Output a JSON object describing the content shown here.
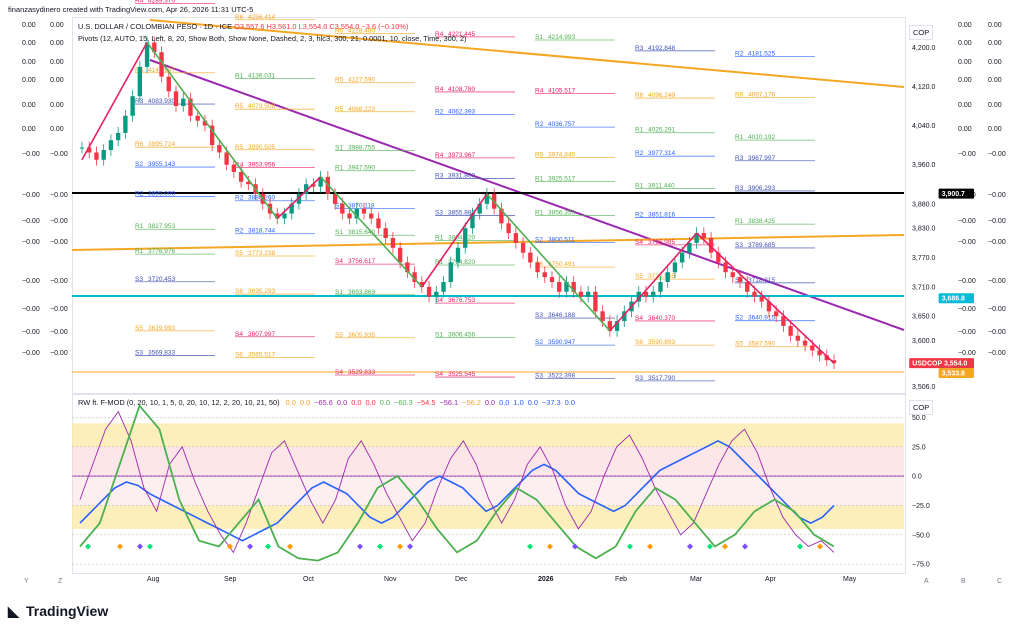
{
  "header": {
    "created_by": "finanzasydinero created with TradingView.com, Apr 26, 2026 11:31 UTC-5"
  },
  "symbol_legend": {
    "symbol": "U.S. DOLLAR / COLOMBIAN PESO · 1D · ICE",
    "ohlc": "O3,557.6  H3,561.0  L3,554.0  C3,554.0  −3.6 (−0.10%)"
  },
  "pivots_legend": "Pivots (12, AUTO, 15, Left, 8, 20, Show Both, Show None, Dashed, 2, 3, hlc3, 300, 21, 0.0001, 10, close, Time, 300, 2)",
  "oscillator_legend": {
    "name": "RW ft. F-MOD (0, 20, 10, 1, 5, 0, 20, 10, 12, 2, 20, 10, 21, 50)",
    "values": [
      {
        "v": "0.0",
        "c": "#f5a623"
      },
      {
        "v": "0.0",
        "c": "#f5a623"
      },
      {
        "v": "−65.6",
        "c": "#9c27b0"
      },
      {
        "v": "0.0",
        "c": "#9c27b0"
      },
      {
        "v": "0.0",
        "c": "#f23645"
      },
      {
        "v": "0.0",
        "c": "#f23645"
      },
      {
        "v": "0.0",
        "c": "#4caf50"
      },
      {
        "v": "−60.3",
        "c": "#4caf50"
      },
      {
        "v": "−54.5",
        "c": "#f23645"
      },
      {
        "v": "−56.1",
        "c": "#9c27b0"
      },
      {
        "v": "−56.2",
        "c": "#f5a623"
      },
      {
        "v": "0.0",
        "c": "#9c27b0"
      },
      {
        "v": "0.0",
        "c": "#2962ff"
      },
      {
        "v": "1.0",
        "c": "#2962ff"
      },
      {
        "v": "0.0",
        "c": "#2962ff"
      },
      {
        "v": "−37.3",
        "c": "#2962ff"
      },
      {
        "v": "0.0",
        "c": "#2962ff"
      }
    ]
  },
  "brand": "TradingView",
  "currency_label": "COP",
  "chart_data": [
    {
      "type": "candlestick",
      "title": "U.S. DOLLAR / COLOMBIAN PESO",
      "interval": "1D",
      "exchange": "ICE",
      "x_ticks": [
        "Aug",
        "Sep",
        "Oct",
        "Nov",
        "Dec",
        "2026",
        "Feb",
        "Mar",
        "Apr",
        "May"
      ],
      "y_ticks": [
        4200.0,
        4120.0,
        4040.0,
        3960.0,
        3880.0,
        3830.0,
        3770.0,
        3710.0,
        3650.0,
        3600.0,
        3506.0
      ],
      "ylim": [
        3495,
        4260
      ],
      "last_price": 3554.0,
      "price_labels": [
        {
          "label": "3,900.7",
          "color": "#000000"
        },
        {
          "label": "3,686.8",
          "color": "#00bcd4"
        },
        {
          "label": "USDCOP 3,554.0",
          "color": "#f23645"
        },
        {
          "label": "3,533.8",
          "color": "#f5a623"
        }
      ],
      "closes": [
        3995,
        3985,
        3970,
        3990,
        4010,
        4025,
        4060,
        4100,
        4160,
        4210,
        4190,
        4140,
        4110,
        4080,
        4095,
        4060,
        4050,
        4040,
        4000,
        3985,
        3960,
        3945,
        3925,
        3920,
        3900,
        3880,
        3860,
        3850,
        3860,
        3880,
        3900,
        3920,
        3915,
        3935,
        3900,
        3880,
        3860,
        3850,
        3870,
        3860,
        3850,
        3830,
        3810,
        3790,
        3760,
        3740,
        3720,
        3710,
        3690,
        3700,
        3720,
        3760,
        3790,
        3830,
        3860,
        3880,
        3900,
        3870,
        3840,
        3820,
        3800,
        3780,
        3760,
        3740,
        3730,
        3720,
        3700,
        3720,
        3700,
        3690,
        3700,
        3660,
        3640,
        3620,
        3640,
        3660,
        3680,
        3700,
        3690,
        3700,
        3720,
        3740,
        3760,
        3780,
        3800,
        3820,
        3810,
        3780,
        3760,
        3740,
        3730,
        3720,
        3700,
        3690,
        3680,
        3660,
        3650,
        3630,
        3610,
        3600,
        3590,
        3580,
        3570,
        3560,
        3554
      ],
      "pivot_levels": [
        {
          "label": "R4",
          "value": "4289.370"
        },
        {
          "label": "R6",
          "value": "4256.414"
        },
        {
          "label": "R5",
          "value": "4228.480"
        },
        {
          "label": "R4",
          "value": "4221.445"
        },
        {
          "label": "S1",
          "value": "4214.993"
        },
        {
          "label": "R3",
          "value": "4192.848"
        },
        {
          "label": "R2",
          "value": "4181.525"
        },
        {
          "label": "R6",
          "value": "4147.997"
        },
        {
          "label": "R1",
          "value": "4136.031"
        },
        {
          "label": "R5",
          "value": "4127.590"
        },
        {
          "label": "R4",
          "value": "4108.780"
        },
        {
          "label": "R4",
          "value": "4105.517"
        },
        {
          "label": "R6",
          "value": "4096.249"
        },
        {
          "label": "R6",
          "value": "4097.176"
        },
        {
          "label": "R3",
          "value": "4083.930"
        },
        {
          "label": "R5",
          "value": "4073.508"
        },
        {
          "label": "R5",
          "value": "4068.223"
        },
        {
          "label": "R2",
          "value": "4062.393"
        },
        {
          "label": "R2",
          "value": "4036.757"
        },
        {
          "label": "R1",
          "value": "4025.291"
        },
        {
          "label": "R1",
          "value": "4010.192"
        },
        {
          "label": "R6",
          "value": "3995.724"
        },
        {
          "label": "R5",
          "value": "3990.505"
        },
        {
          "label": "S1",
          "value": "3988.755"
        },
        {
          "label": "R4",
          "value": "3973.967"
        },
        {
          "label": "R5",
          "value": "3974.840"
        },
        {
          "label": "R2",
          "value": "3977.314"
        },
        {
          "label": "R3",
          "value": "3967.997"
        },
        {
          "label": "S2",
          "value": "3955.143"
        },
        {
          "label": "R4",
          "value": "3953.956"
        },
        {
          "label": "R1",
          "value": "3947.590"
        },
        {
          "label": "R3",
          "value": "3931.800"
        },
        {
          "label": "R1",
          "value": "3925.517"
        },
        {
          "label": "R1",
          "value": "3911.440"
        },
        {
          "label": "R3",
          "value": "3906.293"
        },
        {
          "label": "R2",
          "value": "3895.000"
        },
        {
          "label": "R2",
          "value": "3886.260"
        },
        {
          "label": "S2",
          "value": "3870.118"
        },
        {
          "label": "S3",
          "value": "3855.880"
        },
        {
          "label": "R1",
          "value": "3856.353"
        },
        {
          "label": "R2",
          "value": "3851.816"
        },
        {
          "label": "R1",
          "value": "3838.425"
        },
        {
          "label": "R1",
          "value": "3827.953"
        },
        {
          "label": "R2",
          "value": "3818.744"
        },
        {
          "label": "S1",
          "value": "3815.640"
        },
        {
          "label": "R1",
          "value": "3804.820"
        },
        {
          "label": "S2",
          "value": "3800.511"
        },
        {
          "label": "S4",
          "value": "3795.985"
        },
        {
          "label": "S3",
          "value": "3789.685"
        },
        {
          "label": "R1",
          "value": "3776.976"
        },
        {
          "label": "S5",
          "value": "3773.238"
        },
        {
          "label": "S4",
          "value": "3756.617"
        },
        {
          "label": "R1",
          "value": "3754.820"
        },
        {
          "label": "S6",
          "value": "3750.491"
        },
        {
          "label": "S5",
          "value": "3725.955"
        },
        {
          "label": "S3",
          "value": "3718.315"
        },
        {
          "label": "S3",
          "value": "3720.453"
        },
        {
          "label": "S6",
          "value": "3695.293"
        },
        {
          "label": "S1",
          "value": "3693.869"
        },
        {
          "label": "S4",
          "value": "3676.753"
        },
        {
          "label": "S3",
          "value": "3646.188"
        },
        {
          "label": "S4",
          "value": "3640.370"
        },
        {
          "label": "S2",
          "value": "3640.915"
        },
        {
          "label": "S5",
          "value": "3619.993"
        },
        {
          "label": "S4",
          "value": "3607.997"
        },
        {
          "label": "S5",
          "value": "3605.935"
        },
        {
          "label": "S1",
          "value": "3606.456"
        },
        {
          "label": "S2",
          "value": "3590.947"
        },
        {
          "label": "S6",
          "value": "3590.893"
        },
        {
          "label": "S5",
          "value": "3587.590"
        },
        {
          "label": "S3",
          "value": "3569.833"
        },
        {
          "label": "S6",
          "value": "3565.517"
        },
        {
          "label": "S4",
          "value": "3529.833"
        },
        {
          "label": "S4",
          "value": "3525.545"
        },
        {
          "label": "S3",
          "value": "3522.398"
        },
        {
          "label": "S3",
          "value": "3517.790"
        }
      ]
    },
    {
      "type": "line",
      "title": "RW ft. F-MOD",
      "y_ticks": [
        50.0,
        25.0,
        0.0,
        -25.0,
        -50.0,
        -75.0
      ],
      "ylim": [
        -80,
        70
      ],
      "series": [
        {
          "name": "",
          "color": "#2962ff",
          "values": [
            -40,
            -30,
            -20,
            -10,
            -5,
            -8,
            -15,
            -20,
            -25,
            -30,
            -35,
            -40,
            -45,
            -50,
            -55,
            -50,
            -45,
            -40,
            -30,
            -20,
            -10,
            -5,
            -10,
            -15,
            -25,
            -35,
            -40,
            -35,
            -25,
            -15,
            -5,
            0,
            -5,
            -10,
            -20,
            -30,
            -25,
            -15,
            -5,
            5,
            10,
            5,
            -5,
            -15,
            -20,
            -25,
            -30,
            -25,
            -15,
            -5,
            5,
            10,
            15,
            20,
            25,
            30,
            25,
            15,
            5,
            -5,
            -15,
            -25,
            -35,
            -40,
            -35,
            -25
          ]
        },
        {
          "name": "",
          "color": "#9c27b0",
          "values": [
            -20,
            10,
            40,
            55,
            30,
            -10,
            -30,
            10,
            25,
            -5,
            -30,
            -50,
            -65,
            -40,
            -10,
            20,
            30,
            5,
            -20,
            -40,
            -20,
            15,
            30,
            10,
            -15,
            -35,
            -55,
            -40,
            -10,
            15,
            30,
            10,
            -20,
            -40,
            -20,
            10,
            25,
            5,
            -25,
            -45,
            -30,
            0,
            25,
            35,
            15,
            -10,
            -30,
            -50,
            -40,
            -15,
            10,
            30,
            40,
            20,
            -10,
            -35,
            -50,
            -60,
            -55,
            -65
          ]
        },
        {
          "name": "",
          "color": "#4caf50",
          "values": [
            -60,
            -40,
            10,
            60,
            40,
            -20,
            -55,
            -60,
            -40,
            -20,
            -60,
            -70,
            -72,
            -65,
            -40,
            -10,
            0,
            -20,
            -45,
            -65,
            -55,
            -30,
            -10,
            -20,
            -40,
            -60,
            -70,
            -60,
            -30,
            -10,
            -20,
            -40,
            -60,
            -50,
            -30,
            -20,
            -30,
            -50,
            -60
          ]
        }
      ]
    }
  ]
}
